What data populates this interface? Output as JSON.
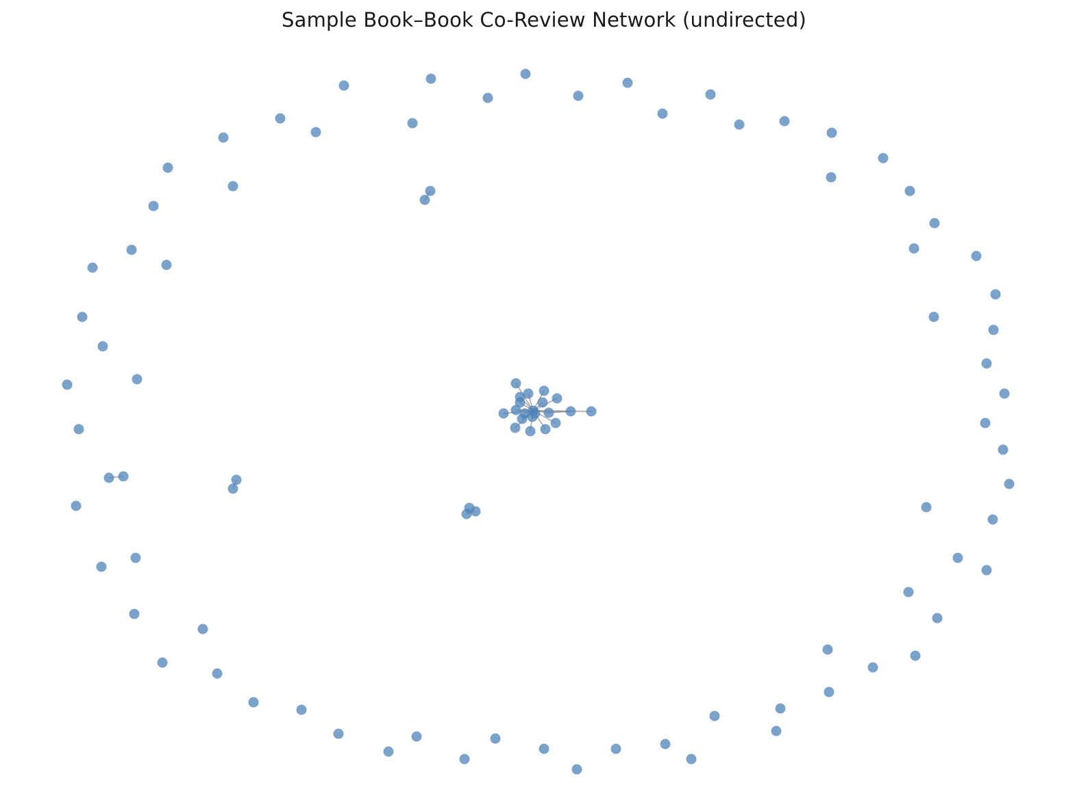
{
  "title": "Sample Book–Book Co-Review Network (undirected)",
  "style": {
    "node_color": "#4f83b8",
    "node_opacity": 0.75,
    "edge_color": "#8a8a8a"
  },
  "graph": {
    "directed": false,
    "isolated_node_count": 90,
    "components": [
      {
        "size": 21,
        "edges": 21
      },
      {
        "size": 3,
        "edges": 2
      },
      {
        "size": 2,
        "edges": 1
      },
      {
        "size": 2,
        "edges": 1
      },
      {
        "size": 2,
        "edges": 1
      }
    ]
  }
}
